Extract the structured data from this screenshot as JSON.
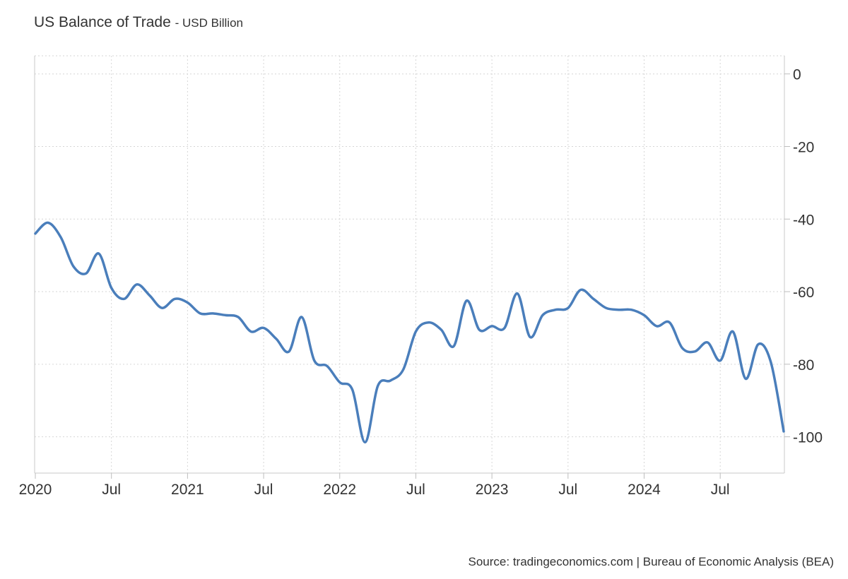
{
  "chart_data": {
    "type": "line",
    "title": "US Balance of Trade",
    "subtitle": "- USD Billion",
    "xlabel": "",
    "ylabel": "",
    "ylim": [
      -110,
      5
    ],
    "y_ticks": [
      0,
      -20,
      -40,
      -60,
      -80,
      -100
    ],
    "x_range": [
      2020.0,
      2024.917
    ],
    "x_ticks": [
      {
        "label": "2020",
        "x": 2020.0
      },
      {
        "label": "Jul",
        "x": 2020.5
      },
      {
        "label": "2021",
        "x": 2021.0
      },
      {
        "label": "Jul",
        "x": 2021.5
      },
      {
        "label": "2022",
        "x": 2022.0
      },
      {
        "label": "Jul",
        "x": 2022.5
      },
      {
        "label": "2023",
        "x": 2023.0
      },
      {
        "label": "Jul",
        "x": 2023.5
      },
      {
        "label": "2024",
        "x": 2024.0
      },
      {
        "label": "Jul",
        "x": 2024.5
      }
    ],
    "grid": true,
    "series": [
      {
        "name": "US Balance of Trade",
        "color": "#4a7ebb",
        "x": [
          2020.0,
          2020.083,
          2020.167,
          2020.25,
          2020.333,
          2020.417,
          2020.5,
          2020.583,
          2020.667,
          2020.75,
          2020.833,
          2020.917,
          2021.0,
          2021.083,
          2021.167,
          2021.25,
          2021.333,
          2021.417,
          2021.5,
          2021.583,
          2021.667,
          2021.75,
          2021.833,
          2021.917,
          2022.0,
          2022.083,
          2022.167,
          2022.25,
          2022.333,
          2022.417,
          2022.5,
          2022.583,
          2022.667,
          2022.75,
          2022.833,
          2022.917,
          2023.0,
          2023.083,
          2023.167,
          2023.25,
          2023.333,
          2023.417,
          2023.5,
          2023.583,
          2023.667,
          2023.75,
          2023.833,
          2023.917,
          2024.0,
          2024.083,
          2024.167,
          2024.25,
          2024.333,
          2024.417,
          2024.5,
          2024.583,
          2024.667,
          2024.75,
          2024.833,
          2024.917
        ],
        "values": [
          -44,
          -41,
          -45,
          -53,
          -55,
          -49.5,
          -59,
          -62,
          -58,
          -61,
          -64.5,
          -62,
          -63,
          -66,
          -66,
          -66.5,
          -67,
          -71,
          -70,
          -73,
          -76.5,
          -67,
          -79,
          -80.5,
          -85,
          -87,
          -101.5,
          -86,
          -84.5,
          -81.5,
          -71,
          -68.5,
          -70.5,
          -75,
          -62.5,
          -70.5,
          -69.5,
          -70,
          -60.5,
          -72.5,
          -66.5,
          -65,
          -64.5,
          -59.5,
          -62,
          -64.5,
          -65,
          -65,
          -66.5,
          -69.5,
          -68.5,
          -75.5,
          -76.5,
          -74,
          -79,
          -71,
          -84,
          -74.5,
          -79.5,
          -98.5
        ]
      }
    ],
    "source": "Source: tradingeconomics.com | Bureau of Economic Analysis (BEA)"
  }
}
